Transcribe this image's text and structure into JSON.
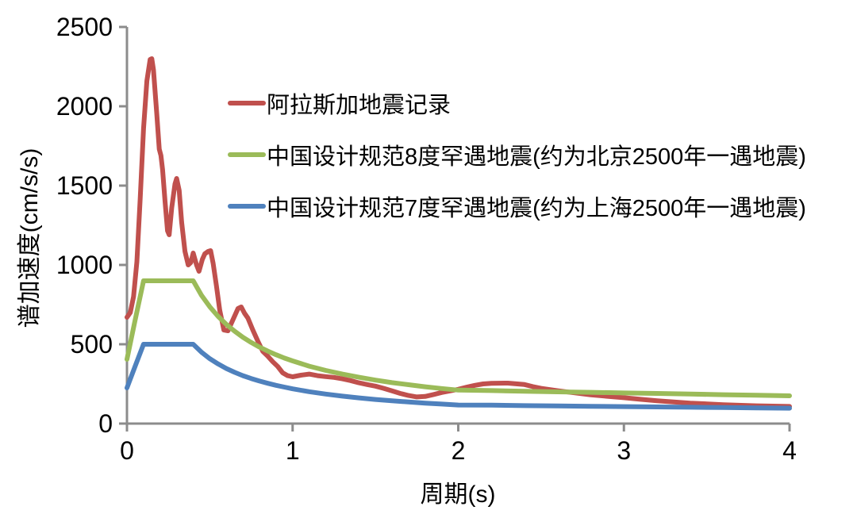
{
  "page": {
    "background_color": "#ffffff"
  },
  "axes": {
    "y_title": "谱加速度(cm/s/s)",
    "x_title": "周期(s)",
    "axis_color": "#8C8C8C",
    "tick_label_color": "#000000"
  },
  "legend": {
    "items": [
      {
        "label": "阿拉斯加地震记录",
        "color": "#C0504D"
      },
      {
        "label": "中国设计规范8度罕遇地震(约为北京2500年一遇地震)",
        "color": "#9BBB59"
      },
      {
        "label": "中国设计规范7度罕遇地震(约为上海2500年一遇地震)",
        "color": "#4F81BD"
      }
    ]
  },
  "chart_data": {
    "type": "line",
    "title": "",
    "xlabel": "周期(s)",
    "ylabel": "谱加速度(cm/s/s)",
    "xlim": [
      0,
      4
    ],
    "ylim": [
      0,
      2500
    ],
    "x_ticks": [
      0,
      1,
      2,
      3,
      4
    ],
    "y_ticks": [
      0,
      500,
      1000,
      1500,
      2000,
      2500
    ],
    "grid": false,
    "legend_position": "inside-upper-right",
    "series": [
      {
        "name": "阿拉斯加地震记录",
        "color": "#C0504D",
        "points": [
          [
            0,
            670
          ],
          [
            0.02,
            700
          ],
          [
            0.04,
            800
          ],
          [
            0.06,
            1020
          ],
          [
            0.08,
            1420
          ],
          [
            0.1,
            1860
          ],
          [
            0.12,
            2160
          ],
          [
            0.14,
            2295
          ],
          [
            0.15,
            2300
          ],
          [
            0.16,
            2230
          ],
          [
            0.18,
            1950
          ],
          [
            0.195,
            1730
          ],
          [
            0.205,
            1690
          ],
          [
            0.215,
            1600
          ],
          [
            0.23,
            1400
          ],
          [
            0.245,
            1215
          ],
          [
            0.255,
            1190
          ],
          [
            0.27,
            1360
          ],
          [
            0.29,
            1510
          ],
          [
            0.3,
            1545
          ],
          [
            0.315,
            1470
          ],
          [
            0.33,
            1270
          ],
          [
            0.35,
            1085
          ],
          [
            0.37,
            1000
          ],
          [
            0.385,
            1015
          ],
          [
            0.4,
            1075
          ],
          [
            0.42,
            1000
          ],
          [
            0.435,
            960
          ],
          [
            0.455,
            1035
          ],
          [
            0.47,
            1070
          ],
          [
            0.49,
            1085
          ],
          [
            0.505,
            1090
          ],
          [
            0.52,
            1010
          ],
          [
            0.54,
            870
          ],
          [
            0.56,
            715
          ],
          [
            0.585,
            590
          ],
          [
            0.61,
            585
          ],
          [
            0.64,
            655
          ],
          [
            0.67,
            725
          ],
          [
            0.69,
            735
          ],
          [
            0.71,
            695
          ],
          [
            0.73,
            665
          ],
          [
            0.76,
            590
          ],
          [
            0.79,
            520
          ],
          [
            0.82,
            455
          ],
          [
            0.85,
            425
          ],
          [
            0.88,
            390
          ],
          [
            0.91,
            360
          ],
          [
            0.94,
            320
          ],
          [
            0.97,
            302
          ],
          [
            1.0,
            295
          ],
          [
            1.05,
            305
          ],
          [
            1.1,
            312
          ],
          [
            1.15,
            302
          ],
          [
            1.2,
            296
          ],
          [
            1.25,
            291
          ],
          [
            1.3,
            282
          ],
          [
            1.35,
            271
          ],
          [
            1.4,
            257
          ],
          [
            1.45,
            246
          ],
          [
            1.5,
            236
          ],
          [
            1.55,
            222
          ],
          [
            1.6,
            206
          ],
          [
            1.65,
            190
          ],
          [
            1.7,
            177
          ],
          [
            1.75,
            168
          ],
          [
            1.8,
            171
          ],
          [
            1.85,
            183
          ],
          [
            1.9,
            196
          ],
          [
            1.95,
            206
          ],
          [
            2.0,
            216
          ],
          [
            2.05,
            229
          ],
          [
            2.1,
            241
          ],
          [
            2.15,
            250
          ],
          [
            2.2,
            254
          ],
          [
            2.3,
            255
          ],
          [
            2.4,
            246
          ],
          [
            2.45,
            233
          ],
          [
            2.5,
            222
          ],
          [
            2.6,
            207
          ],
          [
            2.7,
            194
          ],
          [
            2.8,
            181
          ],
          [
            2.9,
            172
          ],
          [
            3.0,
            163
          ],
          [
            3.1,
            153
          ],
          [
            3.2,
            144
          ],
          [
            3.4,
            129
          ],
          [
            3.6,
            119
          ],
          [
            3.8,
            112
          ],
          [
            4.0,
            108
          ]
        ]
      },
      {
        "name": "中国设计规范8度罕遇地震(约为北京2500年一遇地震)",
        "color": "#9BBB59",
        "points": [
          [
            0,
            405
          ],
          [
            0.05,
            655
          ],
          [
            0.1,
            900
          ],
          [
            0.4,
            900
          ],
          [
            0.45,
            809
          ],
          [
            0.5,
            736
          ],
          [
            0.55,
            676
          ],
          [
            0.6,
            625
          ],
          [
            0.65,
            582
          ],
          [
            0.7,
            544
          ],
          [
            0.75,
            511
          ],
          [
            0.8,
            482
          ],
          [
            0.85,
            457
          ],
          [
            0.9,
            434
          ],
          [
            0.95,
            413
          ],
          [
            1.0,
            395
          ],
          [
            1.1,
            362
          ],
          [
            1.2,
            335
          ],
          [
            1.3,
            312
          ],
          [
            1.4,
            292
          ],
          [
            1.5,
            274
          ],
          [
            1.6,
            258
          ],
          [
            1.7,
            245
          ],
          [
            1.8,
            232
          ],
          [
            1.9,
            221
          ],
          [
            2.0,
            211
          ],
          [
            2.2,
            208
          ],
          [
            2.4,
            204
          ],
          [
            2.6,
            200
          ],
          [
            2.8,
            197
          ],
          [
            3.0,
            193
          ],
          [
            3.2,
            190
          ],
          [
            3.4,
            186
          ],
          [
            3.6,
            182
          ],
          [
            3.8,
            179
          ],
          [
            4.0,
            175
          ]
        ]
      },
      {
        "name": "中国设计规范7度罕遇地震(约为上海2500年一遇地震)",
        "color": "#4F81BD",
        "points": [
          [
            0,
            225
          ],
          [
            0.05,
            363
          ],
          [
            0.1,
            500
          ],
          [
            0.4,
            500
          ],
          [
            0.45,
            450
          ],
          [
            0.5,
            409
          ],
          [
            0.55,
            376
          ],
          [
            0.6,
            347
          ],
          [
            0.65,
            323
          ],
          [
            0.7,
            302
          ],
          [
            0.75,
            284
          ],
          [
            0.8,
            268
          ],
          [
            0.85,
            254
          ],
          [
            0.9,
            241
          ],
          [
            0.95,
            230
          ],
          [
            1.0,
            219
          ],
          [
            1.1,
            201
          ],
          [
            1.2,
            186
          ],
          [
            1.3,
            173
          ],
          [
            1.4,
            162
          ],
          [
            1.5,
            152
          ],
          [
            1.6,
            144
          ],
          [
            1.7,
            136
          ],
          [
            1.8,
            129
          ],
          [
            1.9,
            123
          ],
          [
            2.0,
            117
          ],
          [
            2.2,
            116
          ],
          [
            2.4,
            113
          ],
          [
            2.6,
            111
          ],
          [
            2.8,
            109
          ],
          [
            3.0,
            107
          ],
          [
            3.2,
            105
          ],
          [
            3.4,
            103
          ],
          [
            3.6,
            101
          ],
          [
            3.8,
            99
          ],
          [
            4.0,
            97
          ]
        ]
      }
    ]
  }
}
